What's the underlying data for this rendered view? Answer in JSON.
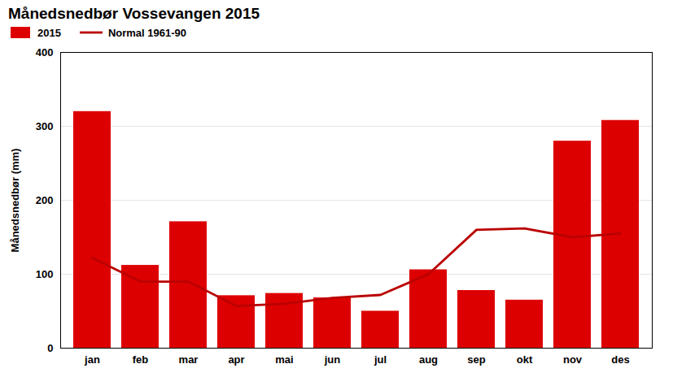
{
  "chart_data": {
    "type": "bar",
    "title": "Månedsnedbør Vossevangen 2015",
    "ylabel": "Månedsnedbør (mm)",
    "categories": [
      "jan",
      "feb",
      "mar",
      "apr",
      "mai",
      "jun",
      "jul",
      "aug",
      "sep",
      "okt",
      "nov",
      "des"
    ],
    "series": [
      {
        "name": "2015",
        "type": "bar",
        "color": "#dd0000",
        "values": [
          320,
          112,
          171,
          71,
          74,
          68,
          50,
          106,
          78,
          65,
          280,
          308
        ]
      },
      {
        "name": "Normal 1961-90",
        "type": "line",
        "color": "#bb0000",
        "values": [
          122,
          90,
          90,
          57,
          60,
          68,
          72,
          100,
          160,
          162,
          150,
          155
        ]
      }
    ],
    "ylim": [
      0,
      400
    ],
    "yticks": [
      0,
      100,
      200,
      300,
      400
    ],
    "grid": true,
    "legend": "upper left"
  }
}
